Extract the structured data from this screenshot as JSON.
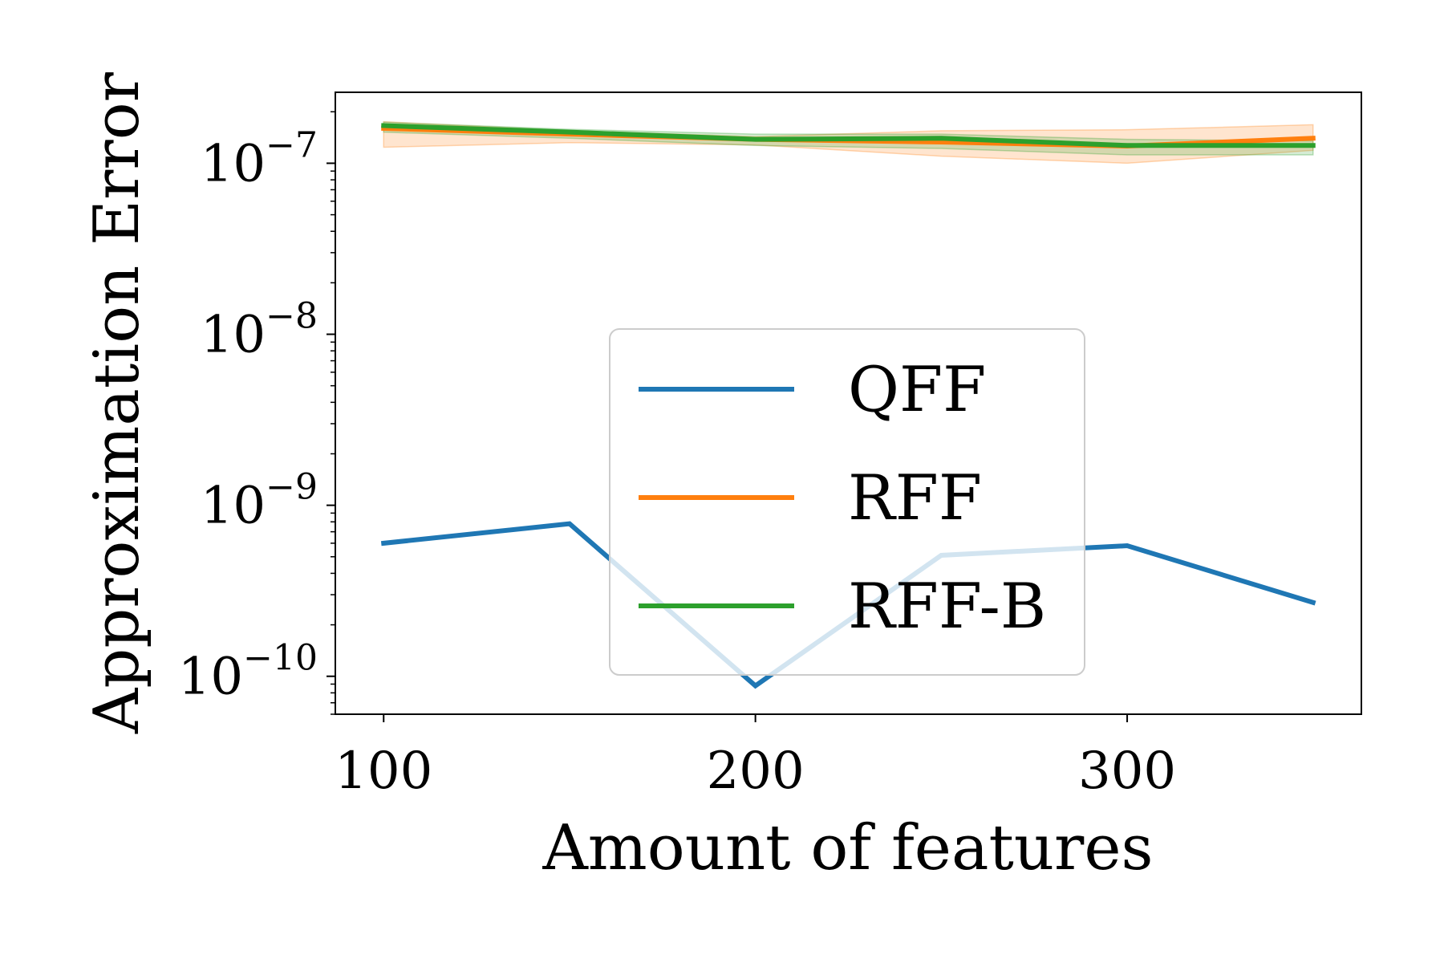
{
  "chart_data": {
    "type": "line",
    "xlabel": "Amount of features",
    "ylabel": "Approximation Error",
    "xscale": "linear",
    "yscale": "log",
    "xlim": [
      87,
      363
    ],
    "ylim": [
      6e-11,
      2.6e-07
    ],
    "xticks": [
      100,
      200,
      300
    ],
    "xtick_labels": [
      "100",
      "200",
      "300"
    ],
    "yticks": [
      1e-10,
      1e-09,
      1e-08,
      1e-07
    ],
    "ytick_labels": [
      {
        "base": "10",
        "exp": "−10"
      },
      {
        "base": "10",
        "exp": "−9"
      },
      {
        "base": "10",
        "exp": "−8"
      },
      {
        "base": "10",
        "exp": "−7"
      }
    ],
    "x": [
      100,
      150,
      200,
      250,
      300,
      350
    ],
    "series": [
      {
        "name": "QFF",
        "color": "#1f77b4",
        "values": [
          6e-10,
          7.8e-10,
          8.8e-11,
          5.1e-10,
          5.8e-10,
          2.7e-10
        ]
      },
      {
        "name": "RFF",
        "color": "#ff7f0e",
        "values": [
          1.6e-07,
          1.48e-07,
          1.38e-07,
          1.33e-07,
          1.26e-07,
          1.4e-07
        ],
        "band_low": [
          1.24e-07,
          1.32e-07,
          1.28e-07,
          1.1e-07,
          1e-07,
          1.19e-07
        ],
        "band_high": [
          1.75e-07,
          1.55e-07,
          1.43e-07,
          1.55e-07,
          1.57e-07,
          1.68e-07
        ]
      },
      {
        "name": "RFF-B",
        "color": "#2ca02c",
        "values": [
          1.66e-07,
          1.52e-07,
          1.38e-07,
          1.4e-07,
          1.27e-07,
          1.27e-07
        ],
        "band_low": [
          1.52e-07,
          1.4e-07,
          1.27e-07,
          1.22e-07,
          1.12e-07,
          1.12e-07
        ],
        "band_high": [
          1.74e-07,
          1.58e-07,
          1.48e-07,
          1.48e-07,
          1.38e-07,
          1.35e-07
        ]
      }
    ],
    "legend": {
      "placement": "center"
    },
    "grid": false
  }
}
